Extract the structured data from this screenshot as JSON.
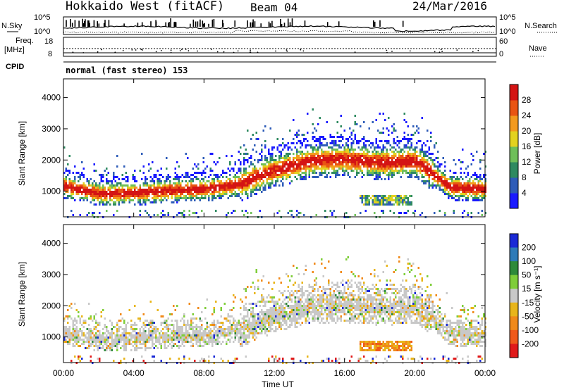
{
  "header": {
    "radar_title": "Hokkaido West (fitACF)",
    "beam_label": "Beam 04",
    "date_label": "24/Mar/2016"
  },
  "status_panels": {
    "nsky_label": "N.Sky",
    "nsearch_label": "N.Search",
    "noise_axis_ticks": [
      "10^5",
      "10^0"
    ],
    "noise_right_ticks": [
      "10^5",
      "10^0"
    ],
    "freq_label": "Freq.",
    "freq_unit": "[MHz]",
    "freq_ticks": [
      "18",
      "8"
    ],
    "nave_label": "Nave",
    "nave_ticks": [
      "60",
      "0"
    ],
    "cpid_label": "CPID",
    "cpid_text": "normal (fast stereo) 153"
  },
  "chart_data": [
    {
      "type": "heatmap",
      "name": "power-panel",
      "ylabel": "Slant Range [km]",
      "y_ticks": [
        1000,
        2000,
        3000,
        4000
      ],
      "ylim": [
        180,
        4600
      ],
      "x_ticks": [
        "00:00",
        "04:00",
        "08:00",
        "12:00",
        "16:00",
        "20:00",
        "00:00"
      ],
      "xlim_hours": [
        0,
        24
      ],
      "colorbar": {
        "label": "Power [dB]",
        "ticks": [
          "4",
          "8",
          "12",
          "16",
          "20",
          "24",
          "28"
        ],
        "colors": [
          "#1a1aff",
          "#2e5cb8",
          "#2e8a60",
          "#6fbf5a",
          "#e3d21f",
          "#f39a1e",
          "#e95513",
          "#d41414"
        ]
      },
      "regions": [
        {
          "desc": "main backscatter band",
          "t": [
            0,
            2,
            4,
            6,
            8,
            10,
            11,
            12,
            14,
            16,
            18,
            20,
            21,
            22,
            24
          ],
          "km": [
            1200,
            950,
            980,
            1050,
            1100,
            1250,
            1500,
            1700,
            2000,
            2050,
            1950,
            2000,
            1600,
            1150,
            1100
          ]
        },
        {
          "desc": "lower echo patch",
          "t_range": [
            16.8,
            19.8
          ],
          "km_range": [
            550,
            900
          ]
        }
      ]
    },
    {
      "type": "heatmap",
      "name": "velocity-panel",
      "ylabel": "Slant Range [km]",
      "y_ticks": [
        1000,
        2000,
        3000,
        4000
      ],
      "ylim": [
        180,
        4600
      ],
      "x_ticks": [
        "00:00",
        "04:00",
        "08:00",
        "12:00",
        "16:00",
        "20:00",
        "00:00"
      ],
      "xlabel": "Time UT",
      "colorbar": {
        "label": "Velocity [m s⁻¹]",
        "ticks": [
          "200",
          "100",
          "50",
          "15",
          "-15",
          "-50",
          "-100",
          "-200"
        ],
        "colors": [
          "#1a2ad6",
          "#2e7bb8",
          "#2e8a3a",
          "#7fce3a",
          "#c8c8c8",
          "#e8b51a",
          "#f08a1a",
          "#ef5a1a",
          "#e01a1a"
        ]
      }
    }
  ]
}
